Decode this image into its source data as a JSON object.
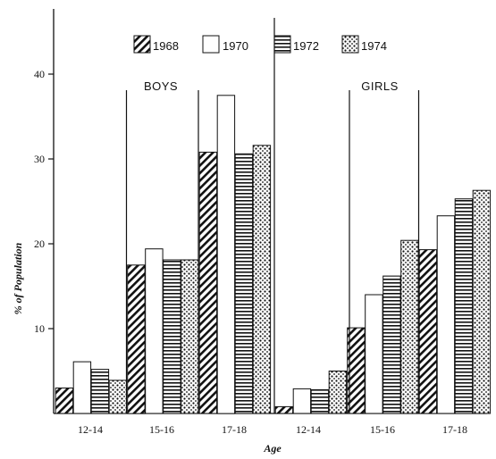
{
  "chart_data": {
    "type": "bar",
    "xlabel": "Age",
    "ylabel": "% of Population",
    "ylim": [
      0,
      47
    ],
    "yticks": [
      10,
      20,
      30,
      40
    ],
    "grid": false,
    "legend_position": "top",
    "groups": [
      "BOYS",
      "GIRLS"
    ],
    "categories": [
      "12-14",
      "15-16",
      "17-18"
    ],
    "series": [
      {
        "name": "1968",
        "pattern": "diagonal-hatch"
      },
      {
        "name": "1970",
        "pattern": "plain-white"
      },
      {
        "name": "1972",
        "pattern": "horizontal-lines"
      },
      {
        "name": "1974",
        "pattern": "dots"
      }
    ],
    "data": {
      "BOYS": {
        "1968": [
          3,
          17.5,
          30.8
        ],
        "1970": [
          6.1,
          19.4,
          37.5
        ],
        "1972": [
          5.2,
          18.1,
          30.6
        ],
        "1974": [
          3.9,
          18.1,
          31.6
        ]
      },
      "GIRLS": {
        "1968": [
          0.8,
          10.1,
          19.3
        ],
        "1970": [
          2.9,
          14,
          23.3
        ],
        "1972": [
          2.8,
          16.2,
          25.3
        ],
        "1974": [
          5,
          20.4,
          26.3
        ]
      }
    }
  }
}
